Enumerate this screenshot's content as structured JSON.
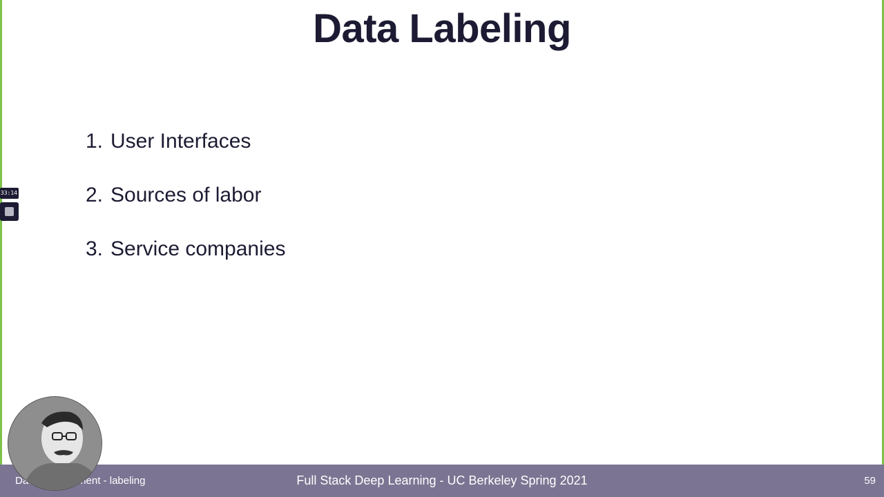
{
  "slide": {
    "title": "Data Labeling",
    "items": [
      {
        "number": "1.",
        "text": "User Interfaces"
      },
      {
        "number": "2.",
        "text": "Sources of labor"
      },
      {
        "number": "3.",
        "text": "Service companies"
      }
    ]
  },
  "recorder": {
    "timer": "33:14",
    "stop_icon": "stop-icon"
  },
  "footer": {
    "left": "Data Management - labeling",
    "center": "Full Stack Deep Learning - UC Berkeley Spring 2021",
    "page_number": "59"
  },
  "colors": {
    "border_accent": "#7dc24b",
    "footer_bg": "#7b7492",
    "text": "#1c1b33"
  }
}
